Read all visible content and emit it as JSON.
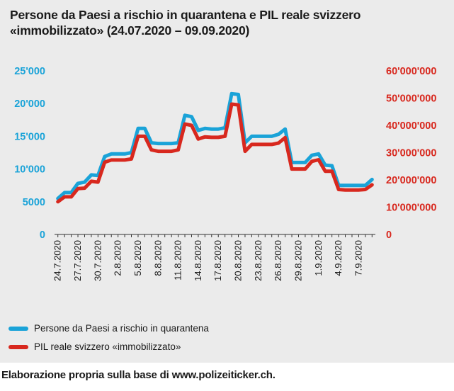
{
  "title": "Persone da Paesi a rischio in quarantena e PIL reale svizzero «immobilizzato» (24.07.2020 – 09.09.2020)",
  "source": "Elaborazione propria sulla base di www.polizeiticker.ch.",
  "colors": {
    "blue": "#1aa3d8",
    "red": "#d8281e",
    "background": "#ebebeb"
  },
  "chart_data": {
    "type": "line",
    "title": "Persone da Paesi a rischio in quarantena e PIL reale svizzero «immobilizzato» (24.07.2020 – 09.09.2020)",
    "x": [
      "24.7.2020",
      "25.7.2020",
      "26.7.2020",
      "27.7.2020",
      "28.7.2020",
      "29.7.2020",
      "30.7.2020",
      "31.7.2020",
      "1.8.2020",
      "2.8.2020",
      "3.8.2020",
      "4.8.2020",
      "5.8.2020",
      "6.8.2020",
      "7.8.2020",
      "8.8.2020",
      "9.8.2020",
      "10.8.2020",
      "11.8.2020",
      "12.8.2020",
      "13.8.2020",
      "14.8.2020",
      "15.8.2020",
      "16.8.2020",
      "17.8.2020",
      "18.8.2020",
      "19.8.2020",
      "20.8.2020",
      "21.8.2020",
      "22.8.2020",
      "23.8.2020",
      "24.8.2020",
      "25.8.2020",
      "26.8.2020",
      "27.8.2020",
      "28.8.2020",
      "29.8.2020",
      "30.8.2020",
      "31.8.2020",
      "1.9.2020",
      "2.9.2020",
      "3.9.2020",
      "4.9.2020",
      "5.9.2020",
      "6.9.2020",
      "7.9.2020",
      "8.9.2020",
      "9.9.2020"
    ],
    "x_tick_labels": [
      "24.7.2020",
      "27.7.2020",
      "30.7.2020",
      "2.8.2020",
      "5.8.2020",
      "8.8.2020",
      "11.8.2020",
      "14.8.2020",
      "17.8.2020",
      "20.8.2020",
      "23.8.2020",
      "26.8.2020",
      "29.8.2020",
      "1.9.2020",
      "4.9.2020",
      "7.9.2020"
    ],
    "y_left": {
      "ticks": [
        "25'000",
        "20'000",
        "15'000",
        "10'000",
        "5000",
        "0"
      ],
      "tick_values": [
        25000,
        20000,
        15000,
        10000,
        5000,
        0
      ],
      "ylim": [
        0,
        25000
      ]
    },
    "y_right": {
      "ticks": [
        "60'000'000",
        "50'000'000",
        "40'000'000",
        "30'000'000",
        "20'000'000",
        "10'000'000",
        "0"
      ],
      "tick_values": [
        60000000,
        50000000,
        40000000,
        30000000,
        20000000,
        10000000,
        0
      ],
      "ylim": [
        0,
        60000000
      ]
    },
    "series": [
      {
        "name": "Persone da Paesi a rischio in quarantena",
        "axis": "left",
        "color": "#1aa3d8",
        "values": [
          5500,
          6400,
          6400,
          7800,
          8000,
          9100,
          9000,
          11900,
          12300,
          12300,
          12300,
          12500,
          16200,
          16200,
          14000,
          13900,
          13900,
          13900,
          14000,
          18200,
          18000,
          15900,
          16200,
          16100,
          16100,
          16300,
          21500,
          21400,
          14000,
          15000,
          15000,
          15000,
          15000,
          15300,
          16100,
          11000,
          11000,
          11000,
          12100,
          12300,
          10600,
          10500,
          7500,
          7500,
          7500,
          7500,
          7500,
          8400
        ]
      },
      {
        "name": "PIL reale svizzero «immobilizzato»",
        "axis": "right",
        "color": "#d8281e",
        "values": [
          12000000,
          13800000,
          13800000,
          16800000,
          17000000,
          19500000,
          19200000,
          26500000,
          27300000,
          27300000,
          27300000,
          27700000,
          36000000,
          36000000,
          31000000,
          30500000,
          30500000,
          30500000,
          31000000,
          40500000,
          40000000,
          35000000,
          35800000,
          35600000,
          35600000,
          36000000,
          47800000,
          47500000,
          30500000,
          33000000,
          33000000,
          33000000,
          33000000,
          33500000,
          35500000,
          24000000,
          24000000,
          24000000,
          26800000,
          27400000,
          23200000,
          23200000,
          16500000,
          16300000,
          16300000,
          16300000,
          16500000,
          18200000
        ]
      }
    ],
    "grid": false,
    "legend_position": "bottom-left"
  }
}
